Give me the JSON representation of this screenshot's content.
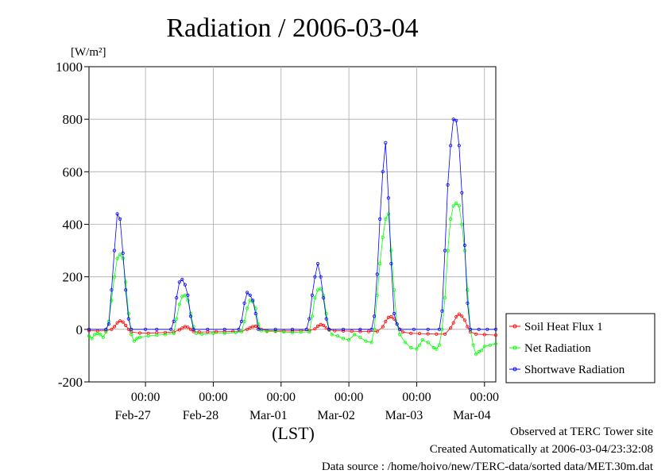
{
  "chart_data": {
    "type": "line",
    "title": "Radiation / 2006-03-04",
    "ylabel": "[W/m²]",
    "xlabel": "(LST)",
    "ylim": [
      -200,
      1000
    ],
    "yticks": [
      -200,
      0,
      200,
      400,
      600,
      800,
      1000
    ],
    "xlim_hours": [
      0,
      144
    ],
    "x_ticks": [
      {
        "time": "00:00",
        "day": "Feb-27"
      },
      {
        "time": "00:00",
        "day": "Feb-28"
      },
      {
        "time": "00:00",
        "day": "Mar-01"
      },
      {
        "time": "00:00",
        "day": "Mar-02"
      },
      {
        "time": "00:00",
        "day": "Mar-03"
      },
      {
        "time": "00:00",
        "day": "Mar-04"
      }
    ],
    "grid": true,
    "legend_position": "right",
    "series": [
      {
        "name": "Soil Heat Flux 1",
        "color": "#ff0000",
        "points": [
          [
            0,
            -5
          ],
          [
            3,
            -6
          ],
          [
            6,
            -5
          ],
          [
            8,
            0
          ],
          [
            9,
            10
          ],
          [
            10,
            25
          ],
          [
            11,
            32
          ],
          [
            12,
            28
          ],
          [
            13,
            15
          ],
          [
            14,
            0
          ],
          [
            15,
            -10
          ],
          [
            18,
            -14
          ],
          [
            21,
            -15
          ],
          [
            24,
            -13
          ],
          [
            27,
            -12
          ],
          [
            30,
            -10
          ],
          [
            32,
            -2
          ],
          [
            33,
            5
          ],
          [
            34,
            10
          ],
          [
            35,
            8
          ],
          [
            36,
            0
          ],
          [
            37,
            -8
          ],
          [
            39,
            -10
          ],
          [
            42,
            -10
          ],
          [
            45,
            -9
          ],
          [
            48,
            -9
          ],
          [
            51,
            -8
          ],
          [
            54,
            -8
          ],
          [
            56,
            0
          ],
          [
            57,
            6
          ],
          [
            58,
            10
          ],
          [
            59,
            12
          ],
          [
            60,
            8
          ],
          [
            61,
            0
          ],
          [
            63,
            -5
          ],
          [
            66,
            -6
          ],
          [
            69,
            -6
          ],
          [
            72,
            -6
          ],
          [
            75,
            -5
          ],
          [
            78,
            -5
          ],
          [
            80,
            2
          ],
          [
            81,
            12
          ],
          [
            82,
            18
          ],
          [
            83,
            15
          ],
          [
            84,
            5
          ],
          [
            85,
            -2
          ],
          [
            87,
            -5
          ],
          [
            90,
            -6
          ],
          [
            93,
            -7
          ],
          [
            96,
            -8
          ],
          [
            99,
            -8
          ],
          [
            102,
            -8
          ],
          [
            104,
            10
          ],
          [
            105,
            30
          ],
          [
            106,
            45
          ],
          [
            107,
            48
          ],
          [
            108,
            40
          ],
          [
            109,
            20
          ],
          [
            110,
            0
          ],
          [
            111,
            -10
          ],
          [
            114,
            -15
          ],
          [
            117,
            -16
          ],
          [
            120,
            -17
          ],
          [
            123,
            -18
          ],
          [
            126,
            -18
          ],
          [
            128,
            5
          ],
          [
            129,
            25
          ],
          [
            130,
            48
          ],
          [
            131,
            58
          ],
          [
            132,
            50
          ],
          [
            133,
            35
          ],
          [
            134,
            10
          ],
          [
            135,
            -10
          ],
          [
            137,
            -18
          ],
          [
            140,
            -20
          ],
          [
            144,
            -22
          ]
        ]
      },
      {
        "name": "Net Radiation",
        "color": "#00ff00",
        "points": [
          [
            0,
            -25
          ],
          [
            1,
            -35
          ],
          [
            2,
            -20
          ],
          [
            3,
            -15
          ],
          [
            4,
            -20
          ],
          [
            5,
            -30
          ],
          [
            6,
            -10
          ],
          [
            7,
            30
          ],
          [
            8,
            110
          ],
          [
            9,
            200
          ],
          [
            10,
            270
          ],
          [
            11,
            285
          ],
          [
            12,
            270
          ],
          [
            13,
            180
          ],
          [
            14,
            60
          ],
          [
            15,
            -20
          ],
          [
            16,
            -45
          ],
          [
            17,
            -35
          ],
          [
            18,
            -30
          ],
          [
            21,
            -25
          ],
          [
            24,
            -22
          ],
          [
            27,
            -20
          ],
          [
            30,
            -15
          ],
          [
            31,
            40
          ],
          [
            32,
            95
          ],
          [
            33,
            125
          ],
          [
            34,
            130
          ],
          [
            35,
            110
          ],
          [
            36,
            60
          ],
          [
            37,
            10
          ],
          [
            38,
            -15
          ],
          [
            40,
            -18
          ],
          [
            44,
            -15
          ],
          [
            48,
            -15
          ],
          [
            52,
            -12
          ],
          [
            54,
            -8
          ],
          [
            55,
            30
          ],
          [
            56,
            80
          ],
          [
            57,
            110
          ],
          [
            58,
            105
          ],
          [
            59,
            80
          ],
          [
            60,
            20
          ],
          [
            61,
            -5
          ],
          [
            63,
            -8
          ],
          [
            66,
            -8
          ],
          [
            69,
            -10
          ],
          [
            72,
            -12
          ],
          [
            75,
            -10
          ],
          [
            78,
            -10
          ],
          [
            79,
            50
          ],
          [
            80,
            120
          ],
          [
            81,
            150
          ],
          [
            82,
            155
          ],
          [
            83,
            130
          ],
          [
            84,
            60
          ],
          [
            85,
            0
          ],
          [
            86,
            -20
          ],
          [
            88,
            -25
          ],
          [
            90,
            -35
          ],
          [
            92,
            -40
          ],
          [
            94,
            -20
          ],
          [
            96,
            -30
          ],
          [
            98,
            -45
          ],
          [
            100,
            -50
          ],
          [
            101,
            0
          ],
          [
            102,
            130
          ],
          [
            103,
            250
          ],
          [
            104,
            350
          ],
          [
            105,
            420
          ],
          [
            106,
            440
          ],
          [
            107,
            300
          ],
          [
            108,
            150
          ],
          [
            109,
            20
          ],
          [
            110,
            -20
          ],
          [
            112,
            -50
          ],
          [
            114,
            -70
          ],
          [
            116,
            -75
          ],
          [
            117,
            -60
          ],
          [
            118,
            -40
          ],
          [
            120,
            -50
          ],
          [
            122,
            -70
          ],
          [
            123,
            -75
          ],
          [
            124,
            -60
          ],
          [
            125,
            0
          ],
          [
            126,
            120
          ],
          [
            127,
            300
          ],
          [
            128,
            420
          ],
          [
            129,
            470
          ],
          [
            130,
            480
          ],
          [
            131,
            470
          ],
          [
            132,
            400
          ],
          [
            133,
            300
          ],
          [
            134,
            150
          ],
          [
            135,
            0
          ],
          [
            136,
            -60
          ],
          [
            137,
            -95
          ],
          [
            138,
            -85
          ],
          [
            139,
            -80
          ],
          [
            140,
            -65
          ],
          [
            142,
            -60
          ],
          [
            144,
            -55
          ]
        ]
      },
      {
        "name": "Shortwave Radiation",
        "color": "#0000ff",
        "points": [
          [
            0,
            0
          ],
          [
            6,
            0
          ],
          [
            7,
            20
          ],
          [
            8,
            150
          ],
          [
            9,
            300
          ],
          [
            10,
            440
          ],
          [
            11,
            420
          ],
          [
            12,
            290
          ],
          [
            13,
            150
          ],
          [
            14,
            40
          ],
          [
            15,
            0
          ],
          [
            20,
            0
          ],
          [
            24,
            0
          ],
          [
            29,
            0
          ],
          [
            30,
            30
          ],
          [
            31,
            120
          ],
          [
            32,
            180
          ],
          [
            33,
            190
          ],
          [
            34,
            170
          ],
          [
            35,
            130
          ],
          [
            36,
            50
          ],
          [
            37,
            0
          ],
          [
            42,
            0
          ],
          [
            48,
            0
          ],
          [
            53,
            0
          ],
          [
            54,
            30
          ],
          [
            55,
            100
          ],
          [
            56,
            140
          ],
          [
            57,
            130
          ],
          [
            58,
            110
          ],
          [
            59,
            60
          ],
          [
            60,
            0
          ],
          [
            66,
            0
          ],
          [
            72,
            0
          ],
          [
            77,
            0
          ],
          [
            78,
            40
          ],
          [
            79,
            130
          ],
          [
            80,
            200
          ],
          [
            81,
            250
          ],
          [
            82,
            200
          ],
          [
            83,
            120
          ],
          [
            84,
            40
          ],
          [
            85,
            0
          ],
          [
            90,
            0
          ],
          [
            96,
            0
          ],
          [
            100,
            0
          ],
          [
            101,
            50
          ],
          [
            102,
            210
          ],
          [
            103,
            420
          ],
          [
            104,
            600
          ],
          [
            105,
            710
          ],
          [
            106,
            500
          ],
          [
            107,
            250
          ],
          [
            108,
            60
          ],
          [
            109,
            20
          ],
          [
            110,
            0
          ],
          [
            115,
            0
          ],
          [
            120,
            0
          ],
          [
            124,
            0
          ],
          [
            125,
            70
          ],
          [
            126,
            300
          ],
          [
            127,
            550
          ],
          [
            128,
            700
          ],
          [
            129,
            800
          ],
          [
            130,
            795
          ],
          [
            131,
            700
          ],
          [
            132,
            520
          ],
          [
            133,
            320
          ],
          [
            134,
            100
          ],
          [
            135,
            0
          ],
          [
            138,
            0
          ],
          [
            141,
            0
          ],
          [
            144,
            0
          ]
        ]
      }
    ]
  },
  "footer": {
    "observed": "Observed at TERC Tower site",
    "created": "Created Automatically at 2006-03-04/23:32:08",
    "source": "Data source : /home/hoivo/new/TERC-data/sorted  data/MET.30m.dat"
  }
}
